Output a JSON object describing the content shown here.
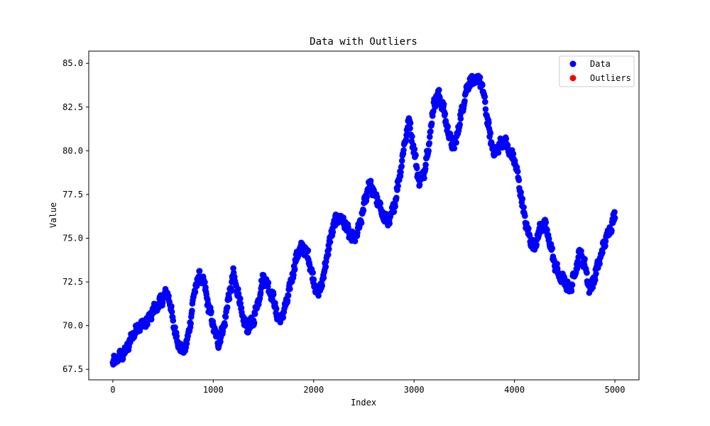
{
  "chart_data": {
    "type": "scatter",
    "title": "Data with Outliers",
    "xlabel": "Index",
    "ylabel": "Value",
    "xlim": [
      -240,
      5240
    ],
    "ylim": [
      66.9,
      85.7
    ],
    "xticks": [
      0,
      1000,
      2000,
      3000,
      4000,
      5000
    ],
    "xtick_labels": [
      "0",
      "1000",
      "2000",
      "3000",
      "4000",
      "5000"
    ],
    "yticks": [
      67.5,
      70.0,
      72.5,
      75.0,
      77.5,
      80.0,
      82.5,
      85.0
    ],
    "ytick_labels": [
      "67.5",
      "70.0",
      "72.5",
      "75.0",
      "77.5",
      "80.0",
      "82.5",
      "85.0"
    ],
    "grid": false,
    "legend_position": "top-right",
    "series": [
      {
        "name": "Data",
        "color": "#0000ff",
        "keypoints": {
          "x": [
            0,
            50,
            100,
            150,
            200,
            250,
            300,
            350,
            400,
            450,
            500,
            550,
            600,
            650,
            700,
            750,
            800,
            850,
            900,
            950,
            1000,
            1050,
            1100,
            1150,
            1200,
            1250,
            1300,
            1350,
            1400,
            1450,
            1500,
            1550,
            1600,
            1650,
            1700,
            1750,
            1800,
            1850,
            1900,
            1950,
            2000,
            2050,
            2100,
            2150,
            2200,
            2250,
            2300,
            2350,
            2400,
            2450,
            2500,
            2550,
            2600,
            2650,
            2700,
            2750,
            2800,
            2850,
            2900,
            2950,
            3000,
            3050,
            3100,
            3150,
            3200,
            3250,
            3300,
            3350,
            3400,
            3450,
            3500,
            3550,
            3600,
            3650,
            3700,
            3750,
            3800,
            3850,
            3900,
            3950,
            4000,
            4050,
            4100,
            4150,
            4200,
            4250,
            4300,
            4350,
            4400,
            4450,
            4500,
            4550,
            4600,
            4650,
            4700,
            4750,
            4800,
            4850,
            4900,
            4950,
            5000
          ],
          "y": [
            67.8,
            68.2,
            68.3,
            68.8,
            69.5,
            69.9,
            70.1,
            70.3,
            70.8,
            71.2,
            71.6,
            71.9,
            70.2,
            69.0,
            68.5,
            69.3,
            71.5,
            72.8,
            72.6,
            71.2,
            70.0,
            69.0,
            69.8,
            71.5,
            72.9,
            71.8,
            70.2,
            69.9,
            70.3,
            71.5,
            72.8,
            72.2,
            71.5,
            70.3,
            70.7,
            71.8,
            73.2,
            74.3,
            74.5,
            73.9,
            72.5,
            71.8,
            72.9,
            74.5,
            75.8,
            76.2,
            76.0,
            75.3,
            74.9,
            75.5,
            76.8,
            78.2,
            77.6,
            76.9,
            76.2,
            75.9,
            76.8,
            78.4,
            80.2,
            81.8,
            80.0,
            78.2,
            78.8,
            80.5,
            82.8,
            83.2,
            82.2,
            80.8,
            80.2,
            81.5,
            83.0,
            84.0,
            83.9,
            84.2,
            83.0,
            81.0,
            79.8,
            80.3,
            80.6,
            79.9,
            79.5,
            78.0,
            76.2,
            75.0,
            74.5,
            75.5,
            75.8,
            74.8,
            73.5,
            72.8,
            72.5,
            72.0,
            73.0,
            74.2,
            73.5,
            72.0,
            72.8,
            73.8,
            74.8,
            75.5,
            76.3
          ]
        }
      },
      {
        "name": "Outliers",
        "color": "#ff0000"
      }
    ]
  }
}
